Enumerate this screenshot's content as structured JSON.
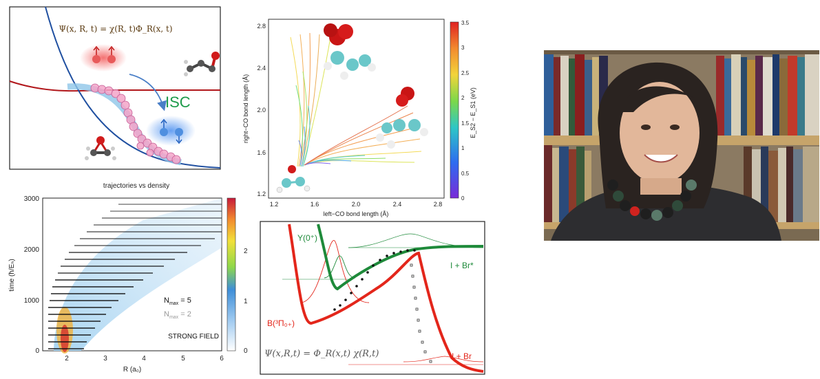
{
  "panel_isc": {
    "equation": "Ψ(x, R, t) = χ(R, t)Φ_R(x, t)",
    "isc_label": "ISC"
  },
  "panel_co": {
    "xlabel": "left−CO bond length (Å)",
    "ylabel": "right−CO bond length (Å)",
    "xticks": [
      "1.2",
      "1.6",
      "2.0",
      "2.4",
      "2.8"
    ],
    "yticks": [
      "1.2",
      "1.6",
      "2.0",
      "2.4",
      "2.8"
    ],
    "cbar_label": "E_S2 − E_S1 (eV)",
    "cbar_ticks": [
      "0",
      "0.5",
      "1",
      "1.5",
      "2",
      "2.5",
      "3",
      "3.5"
    ]
  },
  "panel_traj": {
    "title": "trajectories vs density",
    "xlabel": "R (a₀)",
    "ylabel": "time (ħ/Eₕ)",
    "xticks": [
      "2",
      "3",
      "4",
      "5",
      "6"
    ],
    "yticks": [
      "0",
      "1000",
      "2000",
      "3000"
    ],
    "cbar_ticks": [
      "0",
      "1",
      "2"
    ],
    "legend_nmax5": "N",
    "legend_nmax5_sub": "max",
    "legend_nmax5_val": " = 5",
    "legend_nmax2": "N",
    "legend_nmax2_sub": "max",
    "legend_nmax2_val": " = 2",
    "strong_field": "STRONG FIELD"
  },
  "panel_ibr": {
    "y_label": "Y(0⁺)",
    "b_label": "B(³Π₀₊)",
    "ibr_star": "I + Br*",
    "ibr": "I + Br",
    "handwritten_eq": "Ψ(x,R,t) = Φ_R(x,t) χ(R,t)"
  },
  "photo": {
    "alt": "portrait in library"
  },
  "colors": {
    "red_curve": "#b1171b",
    "blue_curve": "#1f4fa0",
    "green_curve": "#1e8a3a",
    "bright_red": "#e3261b",
    "isc_green": "#1e9b4b",
    "pink_dots": "#e58ab8"
  }
}
